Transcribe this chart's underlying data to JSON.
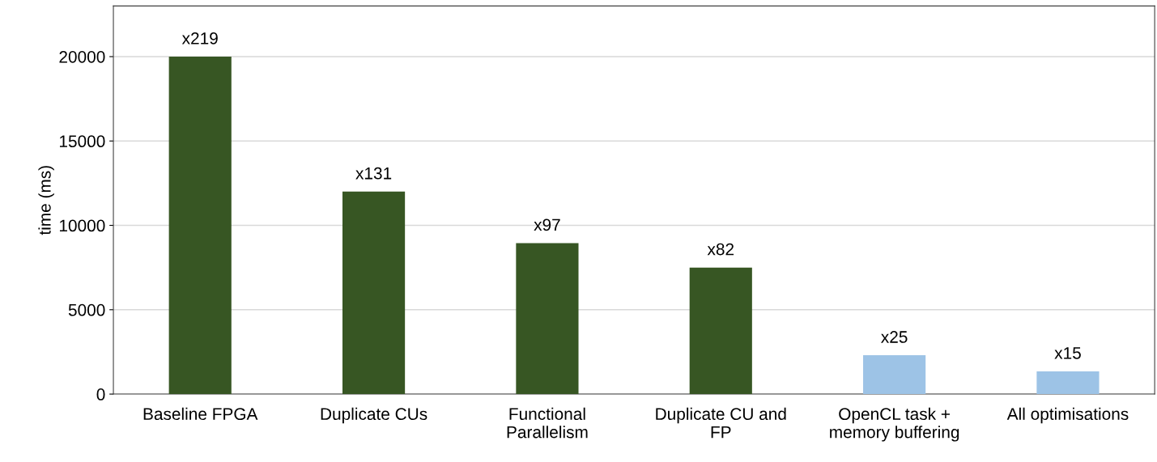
{
  "chart_data": {
    "type": "bar",
    "ylabel": "time (ms)",
    "categories": [
      "Baseline FPGA",
      "Duplicate CUs",
      "Functional\nParallelism",
      "Duplicate CU and\nFP",
      "OpenCL task +\nmemory buffering",
      "All optimisations"
    ],
    "values": [
      20000,
      12000,
      8950,
      7500,
      2300,
      1350
    ],
    "colors": [
      "#375623",
      "#375623",
      "#375623",
      "#375623",
      "#9dc3e6",
      "#9dc3e6"
    ],
    "value_labels": [
      "x219",
      "x131",
      "x97",
      "x82",
      "x25",
      "x15"
    ],
    "ylim": [
      0,
      23000
    ],
    "yticks": [
      0,
      5000,
      10000,
      15000,
      20000
    ],
    "grid": "y",
    "legend": false
  }
}
